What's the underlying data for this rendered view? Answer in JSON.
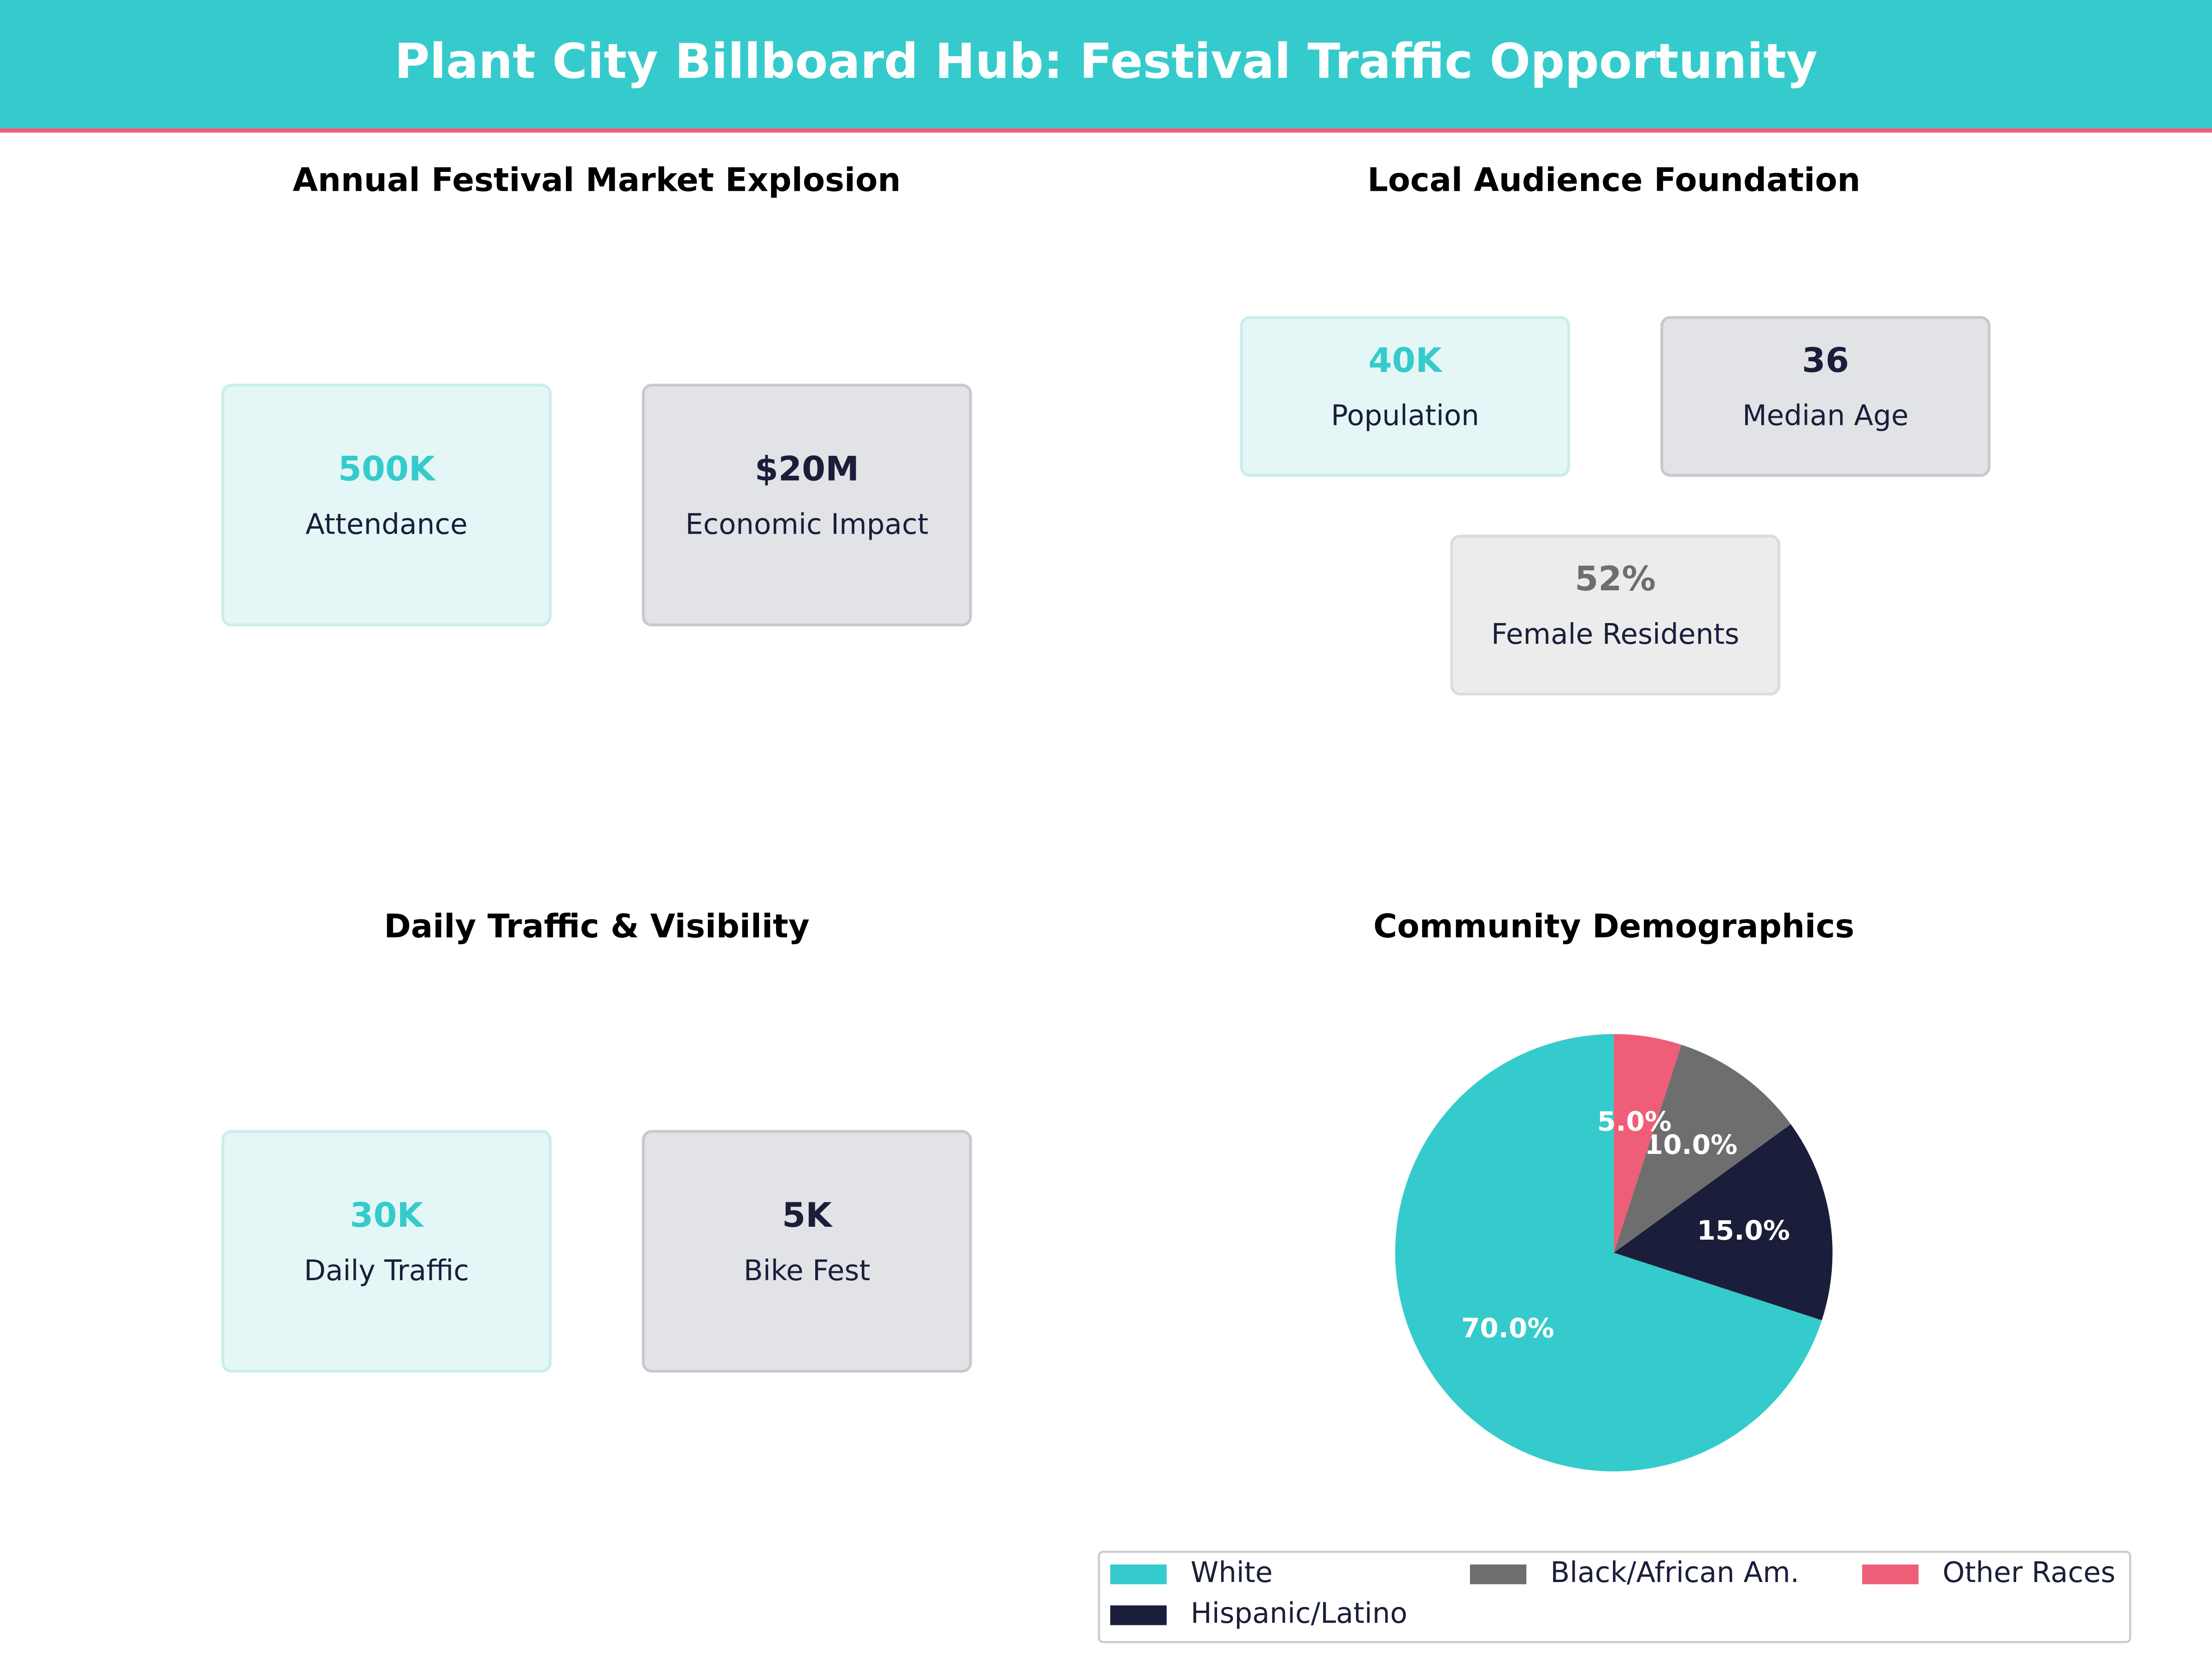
{
  "header": {
    "title": "Plant City Billboard Hub: Festival Traffic Opportunity"
  },
  "panels": [
    {
      "title": "Annual Festival Market Explosion",
      "cards": [
        {
          "value": "500K",
          "label": "Attendance"
        },
        {
          "value": "$20M",
          "label": "Economic Impact"
        }
      ]
    },
    {
      "title": "Local Audience Foundation",
      "cards": [
        {
          "value": "40K",
          "label": "Population"
        },
        {
          "value": "36",
          "label": "Median Age"
        },
        {
          "value": "52%",
          "label": "Female Residents"
        }
      ]
    },
    {
      "title": "Daily Traffic & Visibility",
      "cards": [
        {
          "value": "30K",
          "label": "Daily Traffic"
        },
        {
          "value": "5K",
          "label": "Bike Fest"
        }
      ]
    }
  ],
  "chart_data": {
    "type": "pie",
    "title": "Community Demographics",
    "categories": [
      "White",
      "Hispanic/Latino",
      "Black/African Am.",
      "Other Races"
    ],
    "values": [
      70,
      15,
      10,
      5
    ],
    "value_labels": [
      "70.0%",
      "15.0%",
      "10.0%",
      "5.0%"
    ],
    "colors": [
      "#35cbcc",
      "#1a1e3a",
      "#6e6e6e",
      "#ef5e78"
    ],
    "legend": "bottom"
  }
}
